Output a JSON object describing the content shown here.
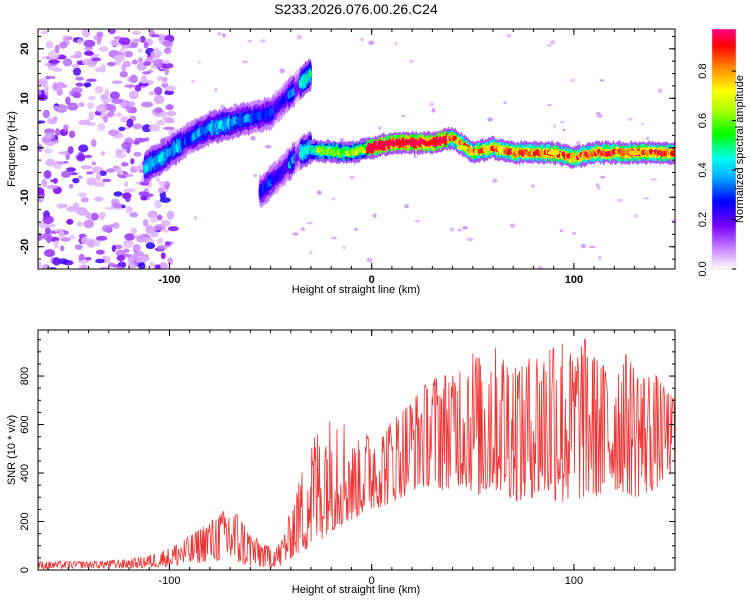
{
  "title": "S233.2026.076.00.26.C24",
  "chart_data": [
    {
      "type": "heatmap",
      "title": "S233.2026.076.00.26.C24",
      "xlabel": "Height of straight line (km)",
      "ylabel": "Frequency (Hz)",
      "xlim": [
        -165,
        150
      ],
      "ylim": [
        -24.5,
        24
      ],
      "xticks": [
        -100,
        0,
        100
      ],
      "yticks": [
        -20,
        -10,
        0,
        10,
        20
      ],
      "colorbar": {
        "label": "Normalized spectral amplitude",
        "range": [
          0,
          0.97
        ],
        "ticks": [
          0.0,
          0.2,
          0.4,
          0.6,
          0.8
        ]
      },
      "ridges": [
        {
          "name": "left-branch",
          "points": [
            [
              -112,
              -4
            ],
            [
              -100,
              -1
            ],
            [
              -90,
              2
            ],
            [
              -80,
              4
            ],
            [
              -70,
              5
            ],
            [
              -60,
              6
            ],
            [
              -50,
              7
            ],
            [
              -45,
              9
            ],
            [
              -40,
              11
            ],
            [
              -35,
              13
            ],
            [
              -30,
              15
            ]
          ]
        },
        {
          "name": "lower-branch",
          "points": [
            [
              -55,
              -9
            ],
            [
              -50,
              -7
            ],
            [
              -45,
              -5
            ],
            [
              -40,
              -3
            ],
            [
              -35,
              -1
            ],
            [
              -30,
              0
            ]
          ]
        },
        {
          "name": "main-band",
          "points": [
            [
              -30,
              -0.5
            ],
            [
              -10,
              -1
            ],
            [
              0,
              0
            ],
            [
              10,
              1
            ],
            [
              20,
              1
            ],
            [
              30,
              1
            ],
            [
              40,
              2
            ],
            [
              50,
              -1
            ],
            [
              60,
              0
            ],
            [
              70,
              -1
            ],
            [
              80,
              -1
            ],
            [
              90,
              -1
            ],
            [
              100,
              -2
            ],
            [
              110,
              -1
            ],
            [
              120,
              -1
            ],
            [
              130,
              -1
            ],
            [
              140,
              -1
            ],
            [
              150,
              -1
            ]
          ]
        }
      ],
      "noise_region_x": [
        -165,
        -100
      ],
      "sample_points": [
        {
          "x": -104,
          "y": -2,
          "v": 0.35
        },
        {
          "x": -100,
          "y": -1,
          "v": 0.3
        },
        {
          "x": -96,
          "y": 0,
          "v": 0.35
        },
        {
          "x": -92,
          "y": 1,
          "v": 0.25
        },
        {
          "x": -85,
          "y": 3,
          "v": 0.3
        },
        {
          "x": -75,
          "y": 5,
          "v": 0.35
        },
        {
          "x": -65,
          "y": 6,
          "v": 0.3
        },
        {
          "x": -55,
          "y": 7,
          "v": 0.25
        },
        {
          "x": -42,
          "y": 10,
          "v": 0.2
        },
        {
          "x": -36,
          "y": 13,
          "v": 0.15
        },
        {
          "x": -40,
          "y": -3,
          "v": 0.3
        },
        {
          "x": -35,
          "y": -1,
          "v": 0.4
        },
        {
          "x": -20,
          "y": -1,
          "v": 0.55
        },
        {
          "x": 15,
          "y": 1,
          "v": 0.95
        },
        {
          "x": 30,
          "y": 1,
          "v": 0.92
        },
        {
          "x": 45,
          "y": 0,
          "v": 0.7
        },
        {
          "x": 90,
          "y": -1,
          "v": 0.75
        },
        {
          "x": 130,
          "y": -1,
          "v": 0.78
        }
      ]
    },
    {
      "type": "line",
      "title": "",
      "xlabel": "Height of straight line (km)",
      "ylabel": "SNR (10 * v/v)",
      "xlim": [
        -165,
        150
      ],
      "ylim": [
        0,
        990
      ],
      "xticks": [
        -100,
        0,
        100
      ],
      "yticks": [
        0,
        200,
        400,
        600,
        800
      ],
      "color": "#ee3333",
      "series": [
        {
          "name": "SNR envelope",
          "x": [
            -165,
            -140,
            -120,
            -110,
            -100,
            -90,
            -80,
            -72,
            -66,
            -60,
            -52,
            -45,
            -38,
            -33,
            -28,
            -22,
            -16,
            -10,
            -5,
            0,
            5,
            10,
            15,
            20,
            25,
            30,
            35,
            40,
            45,
            50,
            55,
            60,
            65,
            70,
            75,
            80,
            85,
            90,
            95,
            100,
            105,
            110,
            115,
            120,
            125,
            130,
            135,
            140,
            145,
            150
          ],
          "min": [
            5,
            8,
            8,
            10,
            15,
            20,
            40,
            35,
            25,
            15,
            10,
            15,
            60,
            80,
            100,
            150,
            180,
            200,
            230,
            250,
            260,
            280,
            300,
            330,
            340,
            350,
            330,
            340,
            350,
            320,
            300,
            330,
            320,
            290,
            280,
            300,
            310,
            290,
            270,
            280,
            300,
            300,
            310,
            330,
            320,
            300,
            310,
            330,
            380,
            400
          ],
          "max": [
            35,
            35,
            45,
            60,
            90,
            140,
            200,
            250,
            230,
            150,
            100,
            110,
            300,
            450,
            560,
            600,
            680,
            500,
            550,
            570,
            560,
            620,
            660,
            700,
            750,
            790,
            810,
            800,
            860,
            900,
            860,
            930,
            880,
            860,
            840,
            900,
            880,
            980,
            940,
            870,
            960,
            880,
            840,
            820,
            900,
            840,
            800,
            810,
            750,
            700
          ]
        }
      ]
    }
  ]
}
